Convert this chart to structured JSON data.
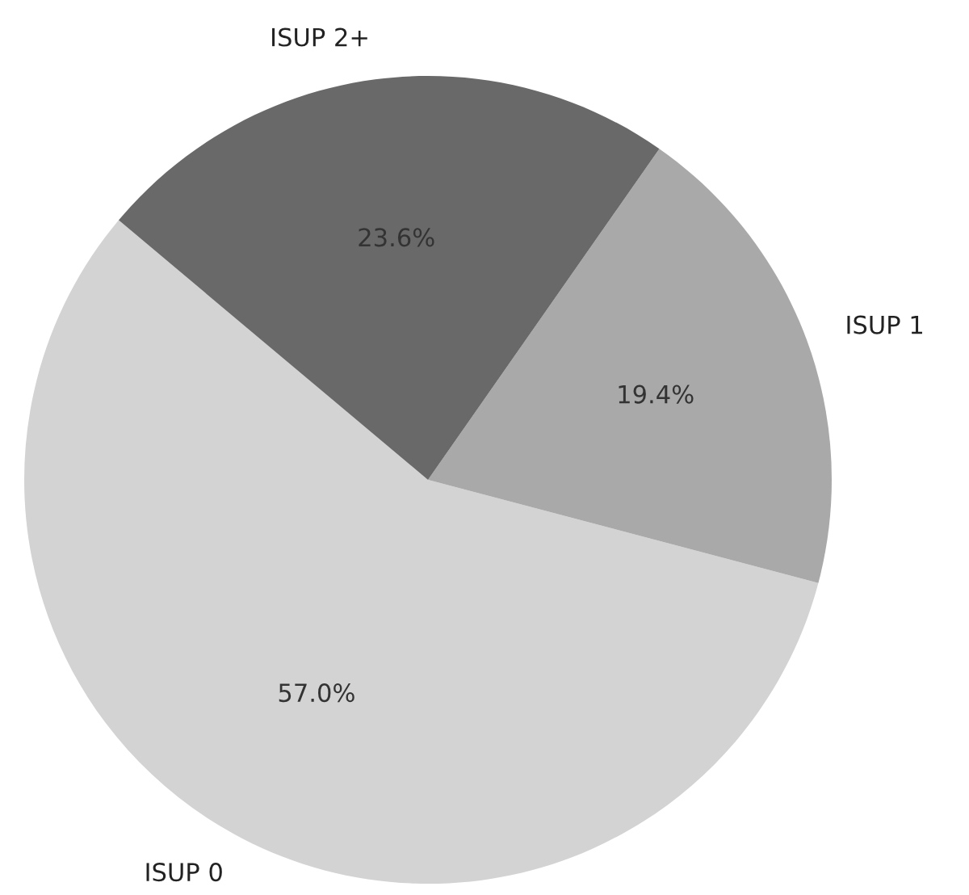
{
  "chart_data": {
    "type": "pie",
    "categories": [
      "ISUP 0",
      "ISUP 1",
      "ISUP 2+"
    ],
    "values": [
      57.0,
      19.4,
      23.6
    ],
    "colors": [
      "#d3d3d3",
      "#a9a9a9",
      "#696969"
    ],
    "value_labels": [
      "57.0%",
      "19.4%",
      "23.6%"
    ]
  }
}
